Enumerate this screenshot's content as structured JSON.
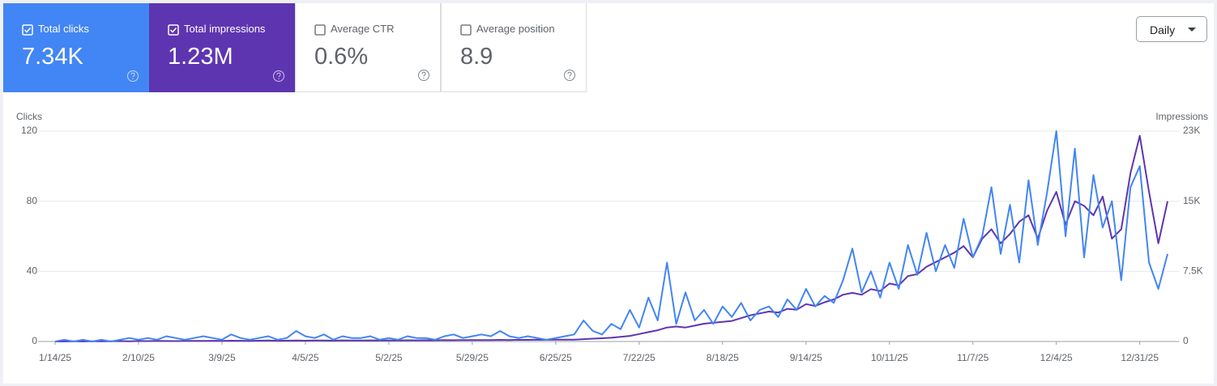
{
  "metrics": [
    {
      "label": "Total clicks",
      "value": "7.34K",
      "checked": true
    },
    {
      "label": "Total impressions",
      "value": "1.23M",
      "checked": true
    },
    {
      "label": "Average CTR",
      "value": "0.6%",
      "checked": false
    },
    {
      "label": "Average position",
      "value": "8.9",
      "checked": false
    }
  ],
  "period": "Daily",
  "chart_data": {
    "type": "line",
    "y_label": "Clicks",
    "y2_label": "Impressions",
    "x": [
      "1/14/25",
      "1/17/25",
      "1/20/25",
      "1/23/25",
      "1/26/25",
      "1/29/25",
      "2/1/25",
      "2/4/25",
      "2/7/25",
      "2/10/25",
      "2/13/25",
      "2/16/25",
      "2/19/25",
      "2/22/25",
      "2/25/25",
      "2/28/25",
      "3/3/25",
      "3/6/25",
      "3/9/25",
      "3/12/25",
      "3/15/25",
      "3/18/25",
      "3/21/25",
      "3/24/25",
      "3/27/25",
      "3/30/25",
      "4/2/25",
      "4/5/25",
      "4/8/25",
      "4/11/25",
      "4/14/25",
      "4/17/25",
      "4/20/25",
      "4/23/25",
      "4/26/25",
      "4/29/25",
      "5/2/25",
      "5/5/25",
      "5/8/25",
      "5/11/25",
      "5/14/25",
      "5/17/25",
      "5/20/25",
      "5/23/25",
      "5/26/25",
      "5/29/25",
      "6/1/25",
      "6/4/25",
      "6/7/25",
      "6/10/25",
      "6/13/25",
      "6/16/25",
      "6/19/25",
      "6/22/25",
      "6/25/25",
      "6/28/25",
      "7/1/25",
      "7/4/25",
      "7/7/25",
      "7/10/25",
      "7/13/25",
      "7/16/25",
      "7/19/25",
      "7/22/25",
      "7/25/25",
      "7/28/25",
      "7/31/25",
      "8/3/25",
      "8/6/25",
      "8/9/25",
      "8/12/25",
      "8/15/25",
      "8/18/25",
      "8/21/25",
      "8/24/25",
      "8/27/25",
      "8/30/25",
      "9/2/25",
      "9/5/25",
      "9/8/25",
      "9/11/25",
      "9/14/25",
      "9/17/25",
      "9/20/25",
      "9/23/25",
      "9/26/25",
      "9/29/25",
      "10/2/25",
      "10/5/25",
      "10/8/25",
      "10/11/25",
      "10/14/25",
      "10/17/25",
      "10/20/25",
      "10/23/25",
      "10/26/25",
      "10/29/25",
      "11/1/25",
      "11/4/25",
      "11/7/25",
      "11/10/25",
      "11/13/25",
      "11/16/25",
      "11/19/25",
      "11/22/25",
      "11/25/25",
      "11/28/25",
      "12/1/25",
      "12/4/25",
      "12/7/25",
      "12/10/25",
      "12/13/25",
      "12/16/25",
      "12/19/25",
      "12/22/25",
      "12/25/25",
      "12/28/25",
      "12/31/25",
      "1/3/26",
      "1/6/26",
      "1/9/26"
    ],
    "xlim": [
      "1/14/25",
      "1/9/26"
    ],
    "xticks": [
      "1/14/25",
      "2/10/25",
      "3/9/25",
      "4/5/25",
      "5/2/25",
      "5/29/25",
      "6/25/25",
      "7/22/25",
      "8/18/25",
      "9/14/25",
      "10/11/25",
      "11/7/25",
      "12/4/25",
      "12/31/25"
    ],
    "ylim": [
      0,
      120
    ],
    "yticks": [
      0,
      40,
      80,
      120
    ],
    "y2lim": [
      0,
      22500
    ],
    "y2ticks": [
      0,
      {
        "value": 7500,
        "label": "7.5K"
      },
      {
        "value": 15000,
        "label": "15K"
      },
      {
        "value": 22500,
        "label": "23K"
      }
    ],
    "grid": true,
    "series": [
      {
        "name": "Impressions",
        "axis": "y2",
        "color": "#5e35b1",
        "values": [
          0,
          10,
          20,
          10,
          20,
          30,
          30,
          40,
          30,
          50,
          40,
          60,
          50,
          40,
          60,
          70,
          60,
          80,
          70,
          90,
          80,
          70,
          90,
          100,
          80,
          90,
          100,
          90,
          110,
          100,
          90,
          120,
          110,
          100,
          120,
          110,
          120,
          110,
          130,
          120,
          140,
          130,
          150,
          140,
          160,
          150,
          160,
          150,
          170,
          160,
          180,
          170,
          190,
          180,
          200,
          190,
          200,
          250,
          300,
          350,
          400,
          500,
          600,
          800,
          1000,
          1200,
          1500,
          1600,
          1500,
          1700,
          1900,
          2000,
          2100,
          2200,
          2500,
          2800,
          3000,
          3200,
          3100,
          3500,
          3400,
          4000,
          3800,
          4200,
          4500,
          5000,
          5200,
          5000,
          5600,
          5400,
          6200,
          6000,
          7000,
          7200,
          8000,
          8500,
          9000,
          9500,
          10200,
          9000,
          11000,
          12000,
          10500,
          11500,
          12800,
          13500,
          11000,
          14000,
          16000,
          12500,
          15000,
          14500,
          13500,
          15500,
          11000,
          12000,
          18000,
          22000,
          16000,
          10500,
          15000
        ]
      },
      {
        "name": "Clicks",
        "color": "#4285f4",
        "values": [
          0,
          1,
          0,
          1,
          0,
          1,
          0,
          1,
          2,
          1,
          2,
          1,
          3,
          2,
          1,
          2,
          3,
          2,
          1,
          4,
          2,
          1,
          2,
          3,
          1,
          2,
          6,
          3,
          2,
          4,
          1,
          3,
          2,
          2,
          3,
          1,
          2,
          1,
          3,
          2,
          2,
          1,
          3,
          4,
          2,
          3,
          4,
          3,
          6,
          3,
          2,
          3,
          2,
          1,
          2,
          3,
          4,
          12,
          6,
          4,
          10,
          7,
          18,
          8,
          25,
          12,
          45,
          10,
          28,
          12,
          18,
          10,
          20,
          14,
          22,
          12,
          18,
          20,
          14,
          24,
          18,
          30,
          20,
          26,
          22,
          35,
          53,
          28,
          40,
          25,
          45,
          30,
          55,
          38,
          62,
          40,
          55,
          42,
          70,
          48,
          60,
          88,
          50,
          78,
          45,
          92,
          55,
          85,
          120,
          60,
          110,
          48,
          95,
          65,
          80,
          35,
          88,
          100,
          45,
          30,
          50
        ]
      }
    ]
  }
}
